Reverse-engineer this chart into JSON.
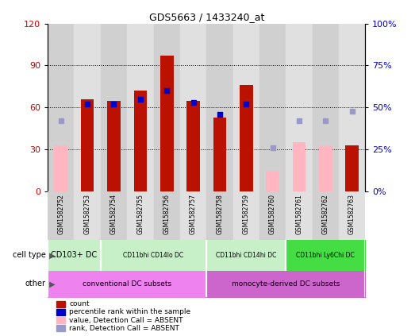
{
  "title": "GDS5663 / 1433240_at",
  "samples": [
    "GSM1582752",
    "GSM1582753",
    "GSM1582754",
    "GSM1582755",
    "GSM1582756",
    "GSM1582757",
    "GSM1582758",
    "GSM1582759",
    "GSM1582760",
    "GSM1582761",
    "GSM1582762",
    "GSM1582763"
  ],
  "red_bars": [
    null,
    66,
    65,
    72,
    97,
    65,
    53,
    76,
    null,
    null,
    null,
    33
  ],
  "red_bar_absent": [
    33,
    null,
    null,
    null,
    null,
    null,
    null,
    null,
    15,
    35,
    33,
    null
  ],
  "blue_dots_y": [
    null,
    52,
    52,
    55,
    60,
    53,
    46,
    52,
    null,
    null,
    null,
    null
  ],
  "blue_dots_absent_y": [
    42,
    null,
    null,
    null,
    null,
    null,
    null,
    null,
    26,
    42,
    42,
    48
  ],
  "ylim_left": [
    0,
    120
  ],
  "ylim_right": [
    0,
    100
  ],
  "yticks_left": [
    0,
    30,
    60,
    90,
    120
  ],
  "yticks_right": [
    0,
    25,
    50,
    75,
    100
  ],
  "bar_color": "#bb1100",
  "absent_bar_color": "#ffb6c1",
  "dot_color": "#0000cc",
  "absent_dot_color": "#9999cc",
  "bar_width": 0.5,
  "dot_size": 22,
  "col_colors": [
    "#d0d0d0",
    "#e0e0e0"
  ],
  "ct_groups": [
    {
      "label": "CD103+ DC",
      "start": 0,
      "end": 1,
      "color": "#c8f0c8"
    },
    {
      "label": "CD11bhi CD14lo DC",
      "start": 2,
      "end": 5,
      "color": "#c8f0c8"
    },
    {
      "label": "CD11bhi CD14hi DC",
      "start": 6,
      "end": 8,
      "color": "#c8f0c8"
    },
    {
      "label": "CD11bhi Ly6Chi DC",
      "start": 9,
      "end": 11,
      "color": "#44dd44"
    }
  ],
  "ot_groups": [
    {
      "label": "conventional DC subsets",
      "start": 0,
      "end": 5,
      "color": "#ee82ee"
    },
    {
      "label": "monocyte-derived DC subsets",
      "start": 6,
      "end": 11,
      "color": "#cc66cc"
    }
  ],
  "legend_items": [
    {
      "label": "count",
      "color": "#bb1100"
    },
    {
      "label": "percentile rank within the sample",
      "color": "#0000cc"
    },
    {
      "label": "value, Detection Call = ABSENT",
      "color": "#ffb6c1"
    },
    {
      "label": "rank, Detection Call = ABSENT",
      "color": "#9999cc"
    }
  ],
  "left_tick_color": "#cc0000",
  "right_tick_color": "#0000cc"
}
